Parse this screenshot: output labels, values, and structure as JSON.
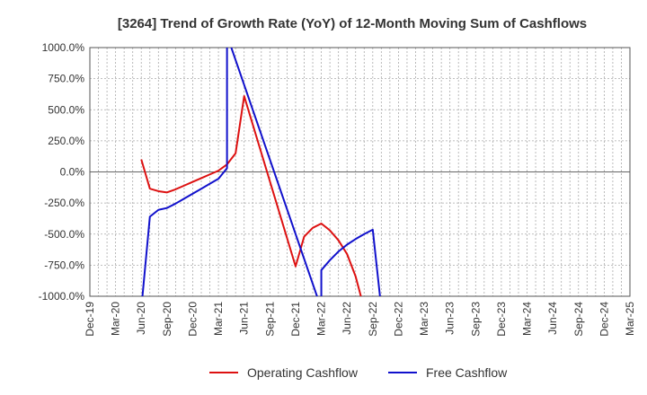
{
  "chart_data": {
    "type": "line",
    "title": "[3264]  Trend of Growth Rate (YoY) of 12-Month Moving Sum of Cashflows",
    "xlabel": "",
    "ylabel": "",
    "ylim": [
      -1000,
      1000
    ],
    "y_ticks": [
      -1000,
      -750,
      -500,
      -250,
      0,
      250,
      500,
      750,
      1000
    ],
    "y_tick_labels": [
      "-1000.0%",
      "-750.0%",
      "-500.0%",
      "-250.0%",
      "0.0%",
      "250.0%",
      "500.0%",
      "750.0%",
      "1000.0%"
    ],
    "x_range": [
      "2019-12",
      "2025-03"
    ],
    "x_tick_labels": [
      "Dec-19",
      "Mar-20",
      "Jun-20",
      "Sep-20",
      "Dec-20",
      "Mar-21",
      "Jun-21",
      "Sep-21",
      "Dec-21",
      "Mar-22",
      "Jun-22",
      "Sep-22",
      "Dec-22",
      "Mar-23",
      "Jun-23",
      "Sep-23",
      "Dec-23",
      "Mar-24",
      "Jun-24",
      "Sep-24",
      "Dec-24",
      "Mar-25"
    ],
    "grid": true,
    "legend_position": "bottom-center",
    "series": [
      {
        "name": "Operating Cashflow",
        "color": "#dd1111",
        "points": [
          {
            "x": "2020-06",
            "y": 100
          },
          {
            "x": "2020-07",
            "y": -135
          },
          {
            "x": "2020-08",
            "y": -155
          },
          {
            "x": "2020-09",
            "y": -165
          },
          {
            "x": "2020-10",
            "y": -140
          },
          {
            "x": "2020-11",
            "y": -110
          },
          {
            "x": "2020-12",
            "y": -80
          },
          {
            "x": "2021-01",
            "y": -50
          },
          {
            "x": "2021-02",
            "y": -20
          },
          {
            "x": "2021-03",
            "y": 10
          },
          {
            "x": "2021-04",
            "y": 60
          },
          {
            "x": "2021-05",
            "y": 150
          },
          {
            "x": "2021-06",
            "y": 610
          },
          {
            "x": "2021-12",
            "y": -760
          },
          {
            "x": "2022-01",
            "y": -520
          },
          {
            "x": "2022-02",
            "y": -450
          },
          {
            "x": "2022-03",
            "y": -415
          },
          {
            "x": "2022-04",
            "y": -470
          },
          {
            "x": "2022-05",
            "y": -550
          },
          {
            "x": "2022-06",
            "y": -660
          },
          {
            "x": "2022-07",
            "y": -840
          },
          {
            "x": "2022-08",
            "y": -1100
          }
        ]
      },
      {
        "name": "Free Cashflow",
        "color": "#1111cc",
        "points": [
          {
            "x": "2020-06",
            "y": -1100
          },
          {
            "x": "2020-07",
            "y": -360
          },
          {
            "x": "2020-08",
            "y": -305
          },
          {
            "x": "2020-09",
            "y": -290
          },
          {
            "x": "2020-10",
            "y": -255
          },
          {
            "x": "2020-11",
            "y": -215
          },
          {
            "x": "2020-12",
            "y": -175
          },
          {
            "x": "2021-01",
            "y": -135
          },
          {
            "x": "2021-02",
            "y": -95
          },
          {
            "x": "2021-03",
            "y": -55
          },
          {
            "x": "2021-04",
            "y": 30
          },
          {
            "x": "2021-04",
            "y": 1100
          },
          {
            "x": "2022-03",
            "y": -1100
          },
          {
            "x": "2022-03",
            "y": -790
          },
          {
            "x": "2022-04",
            "y": -710
          },
          {
            "x": "2022-05",
            "y": -640
          },
          {
            "x": "2022-06",
            "y": -585
          },
          {
            "x": "2022-07",
            "y": -540
          },
          {
            "x": "2022-08",
            "y": -500
          },
          {
            "x": "2022-09",
            "y": -465
          },
          {
            "x": "2022-10",
            "y": -1100
          }
        ]
      }
    ]
  }
}
